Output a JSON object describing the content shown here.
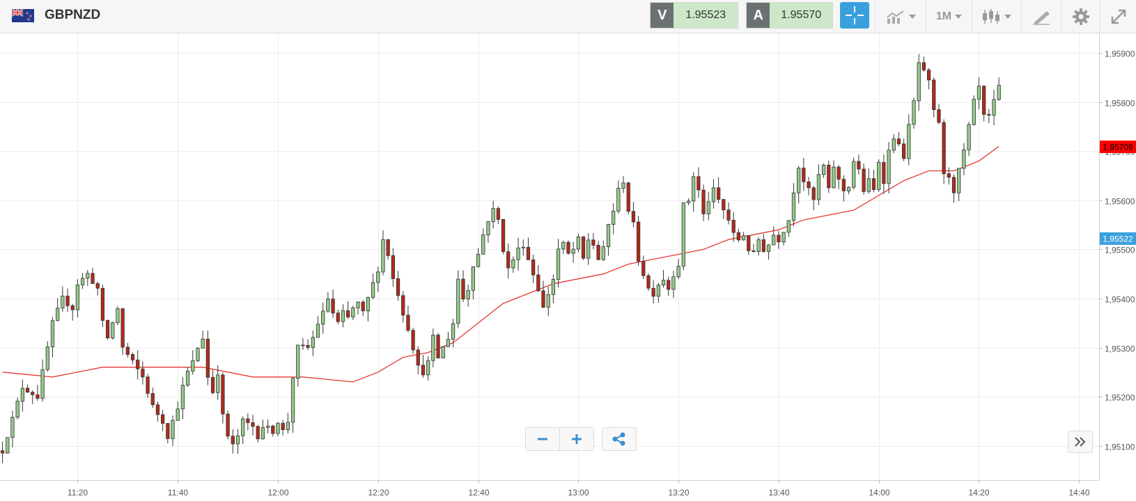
{
  "header": {
    "symbol": "GBPNZD",
    "sell": {
      "label": "V",
      "value": "1.95523"
    },
    "buy": {
      "label": "A",
      "value": "1.95570"
    },
    "timeframe": "1M"
  },
  "icons": {
    "flag": "uk-nz-flag-icon",
    "crosshair": "crosshair-icon",
    "chart_type": "line-chart-icon",
    "candles": "candlestick-icon",
    "draw": "draw-tools-icon",
    "settings": "gear-icon",
    "fullscreen": "expand-icon",
    "zoom_out": "minus-icon",
    "zoom_in": "plus-icon",
    "share": "share-icon",
    "scroll": "double-chevron-right-icon"
  },
  "colors": {
    "up": "#93c98a",
    "down": "#b22a1a",
    "ma": "#e53935",
    "last_price_bg": "#ff0000",
    "bid_price_bg": "#3aa0dd"
  },
  "chart_data": {
    "type": "candlestick",
    "y_ticks": [
      "1,95100",
      "1,95200",
      "1,95300",
      "1,95400",
      "1,95500",
      "1,95600",
      "1,95700",
      "1,95800",
      "1,95900"
    ],
    "y_tick_values": [
      1.951,
      1.952,
      1.953,
      1.954,
      1.955,
      1.956,
      1.957,
      1.958,
      1.959
    ],
    "ylim": [
      1.9503,
      1.9594
    ],
    "x_ticks": [
      "11:20",
      "11:40",
      "12:00",
      "12:20",
      "12:40",
      "13:00",
      "13:20",
      "13:40",
      "14:00",
      "14:20",
      "14:40"
    ],
    "x_tick_minutes": [
      20,
      40,
      60,
      80,
      100,
      120,
      140,
      160,
      180,
      200,
      220
    ],
    "xlim": [
      4.5,
      224
    ],
    "time_start": "11:05",
    "price_labels": [
      {
        "text": "1,95709",
        "value": 1.95709,
        "color": "#ff0000"
      },
      {
        "text": "1,95522",
        "value": 1.95522,
        "color": "#3aa0dd"
      }
    ],
    "close_path": [
      [
        0,
        1.9509
      ],
      [
        4,
        1.9522
      ],
      [
        7,
        1.952
      ],
      [
        9,
        1.953
      ],
      [
        10,
        1.9535
      ],
      [
        12,
        1.954
      ],
      [
        14,
        1.9538
      ],
      [
        15,
        1.9543
      ],
      [
        17,
        1.9545
      ],
      [
        19,
        1.9542
      ],
      [
        20,
        1.9535
      ],
      [
        21,
        1.9532
      ],
      [
        23,
        1.9538
      ],
      [
        24,
        1.953
      ],
      [
        26,
        1.9527
      ],
      [
        28,
        1.9524
      ],
      [
        30,
        1.9518
      ],
      [
        32,
        1.9515
      ],
      [
        33,
        1.9512
      ],
      [
        35,
        1.9518
      ],
      [
        36,
        1.9522
      ],
      [
        37,
        1.9525
      ],
      [
        38,
        1.9527
      ],
      [
        39,
        1.953
      ],
      [
        40,
        1.9532
      ],
      [
        41,
        1.9524
      ],
      [
        42,
        1.9521
      ],
      [
        43,
        1.9525
      ],
      [
        44,
        1.9516
      ],
      [
        45,
        1.9512
      ],
      [
        46,
        1.951
      ],
      [
        47,
        1.9512
      ],
      [
        48,
        1.9515
      ],
      [
        50,
        1.9514
      ],
      [
        51,
        1.9512
      ],
      [
        52,
        1.9514
      ],
      [
        54,
        1.9513
      ],
      [
        55,
        1.9515
      ],
      [
        56,
        1.9513
      ],
      [
        57,
        1.9515
      ],
      [
        58,
        1.9524
      ],
      [
        59,
        1.953
      ],
      [
        61,
        1.953
      ],
      [
        62,
        1.9532
      ],
      [
        63,
        1.9535
      ],
      [
        64,
        1.9537
      ],
      [
        65,
        1.954
      ],
      [
        66,
        1.9537
      ],
      [
        67,
        1.9535
      ],
      [
        68,
        1.9537
      ],
      [
        69,
        1.9536
      ],
      [
        70,
        1.9538
      ],
      [
        71,
        1.9539
      ],
      [
        72,
        1.9537
      ],
      [
        73,
        1.954
      ],
      [
        74,
        1.9543
      ],
      [
        75,
        1.9546
      ],
      [
        76,
        1.9552
      ],
      [
        77,
        1.9549
      ],
      [
        78,
        1.9544
      ],
      [
        79,
        1.9541
      ],
      [
        80,
        1.9537
      ],
      [
        81,
        1.9534
      ],
      [
        82,
        1.953
      ],
      [
        83,
        1.9526
      ],
      [
        84,
        1.9525
      ],
      [
        85,
        1.9527
      ],
      [
        86,
        1.9532
      ],
      [
        87,
        1.9528
      ],
      [
        88,
        1.953
      ],
      [
        89,
        1.9532
      ],
      [
        90,
        1.9535
      ],
      [
        91,
        1.9544
      ],
      [
        92,
        1.954
      ],
      [
        93,
        1.9542
      ],
      [
        94,
        1.9547
      ],
      [
        95,
        1.9549
      ],
      [
        96,
        1.9553
      ],
      [
        97,
        1.9556
      ],
      [
        98,
        1.9558
      ],
      [
        99,
        1.9556
      ],
      [
        100,
        1.955
      ],
      [
        101,
        1.9546
      ],
      [
        102,
        1.9548
      ],
      [
        103,
        1.955
      ],
      [
        104,
        1.9551
      ],
      [
        105,
        1.9548
      ],
      [
        106,
        1.9545
      ],
      [
        107,
        1.9542
      ],
      [
        108,
        1.9538
      ],
      [
        109,
        1.9541
      ],
      [
        110,
        1.9544
      ],
      [
        111,
        1.955
      ],
      [
        112,
        1.9551
      ],
      [
        113,
        1.9549
      ],
      [
        114,
        1.955
      ],
      [
        115,
        1.9552
      ],
      [
        116,
        1.9548
      ],
      [
        117,
        1.9552
      ],
      [
        118,
        1.9551
      ],
      [
        119,
        1.9548
      ],
      [
        120,
        1.955
      ],
      [
        121,
        1.9555
      ],
      [
        122,
        1.9558
      ],
      [
        123,
        1.9562
      ],
      [
        124,
        1.9564
      ],
      [
        125,
        1.9558
      ],
      [
        126,
        1.9555
      ],
      [
        127,
        1.9548
      ],
      [
        128,
        1.9545
      ],
      [
        129,
        1.9542
      ],
      [
        130,
        1.9541
      ],
      [
        131,
        1.9543
      ],
      [
        132,
        1.9544
      ],
      [
        133,
        1.9542
      ],
      [
        134,
        1.9545
      ],
      [
        135,
        1.9547
      ],
      [
        136,
        1.9559
      ],
      [
        137,
        1.956
      ],
      [
        138,
        1.9565
      ],
      [
        139,
        1.9562
      ],
      [
        140,
        1.9557
      ],
      [
        141,
        1.956
      ],
      [
        142,
        1.9562
      ],
      [
        143,
        1.956
      ],
      [
        144,
        1.9558
      ],
      [
        145,
        1.9556
      ],
      [
        146,
        1.9553
      ],
      [
        147,
        1.9552
      ],
      [
        148,
        1.9553
      ],
      [
        149,
        1.955
      ],
      [
        150,
        1.9549
      ],
      [
        151,
        1.9552
      ],
      [
        152,
        1.955
      ],
      [
        153,
        1.9551
      ],
      [
        154,
        1.9553
      ],
      [
        155,
        1.9552
      ],
      [
        156,
        1.9554
      ],
      [
        157,
        1.9556
      ],
      [
        158,
        1.9562
      ],
      [
        159,
        1.9567
      ],
      [
        160,
        1.9564
      ],
      [
        161,
        1.9562
      ],
      [
        162,
        1.956
      ],
      [
        163,
        1.9565
      ],
      [
        164,
        1.9567
      ],
      [
        165,
        1.9562
      ],
      [
        166,
        1.9567
      ],
      [
        167,
        1.9564
      ],
      [
        168,
        1.9562
      ],
      [
        169,
        1.9563
      ],
      [
        170,
        1.9568
      ],
      [
        171,
        1.9566
      ],
      [
        172,
        1.9562
      ],
      [
        173,
        1.9564
      ],
      [
        174,
        1.9562
      ],
      [
        175,
        1.9568
      ],
      [
        176,
        1.9564
      ],
      [
        177,
        1.957
      ],
      [
        178,
        1.9573
      ],
      [
        179,
        1.9571
      ],
      [
        180,
        1.9569
      ],
      [
        181,
        1.9575
      ],
      [
        182,
        1.958
      ],
      [
        183,
        1.9588
      ],
      [
        184,
        1.9586
      ],
      [
        185,
        1.9584
      ],
      [
        186,
        1.9578
      ],
      [
        187,
        1.9576
      ],
      [
        188,
        1.9565
      ],
      [
        189,
        1.9565
      ],
      [
        190,
        1.9562
      ],
      [
        191,
        1.9566
      ],
      [
        192,
        1.957
      ],
      [
        193,
        1.9575
      ],
      [
        194,
        1.958
      ],
      [
        195,
        1.9583
      ],
      [
        196,
        1.9577
      ],
      [
        197,
        1.9577
      ],
      [
        198,
        1.958
      ],
      [
        199,
        1.9583
      ]
    ],
    "moving_average": [
      [
        0,
        1.9525
      ],
      [
        10,
        1.9524
      ],
      [
        20,
        1.9526
      ],
      [
        30,
        1.9526
      ],
      [
        40,
        1.9526
      ],
      [
        50,
        1.9524
      ],
      [
        60,
        1.9524
      ],
      [
        70,
        1.9523
      ],
      [
        75,
        1.9525
      ],
      [
        80,
        1.9528
      ],
      [
        85,
        1.9529
      ],
      [
        90,
        1.9531
      ],
      [
        95,
        1.9535
      ],
      [
        100,
        1.9539
      ],
      [
        105,
        1.9541
      ],
      [
        110,
        1.9543
      ],
      [
        115,
        1.9544
      ],
      [
        120,
        1.9545
      ],
      [
        125,
        1.9547
      ],
      [
        130,
        1.9548
      ],
      [
        135,
        1.9549
      ],
      [
        140,
        1.955
      ],
      [
        145,
        1.9552
      ],
      [
        150,
        1.9553
      ],
      [
        155,
        1.9554
      ],
      [
        160,
        1.9556
      ],
      [
        165,
        1.9557
      ],
      [
        170,
        1.9558
      ],
      [
        175,
        1.9561
      ],
      [
        180,
        1.9564
      ],
      [
        185,
        1.9566
      ],
      [
        190,
        1.9566
      ],
      [
        195,
        1.9568
      ],
      [
        199,
        1.9571
      ]
    ]
  }
}
